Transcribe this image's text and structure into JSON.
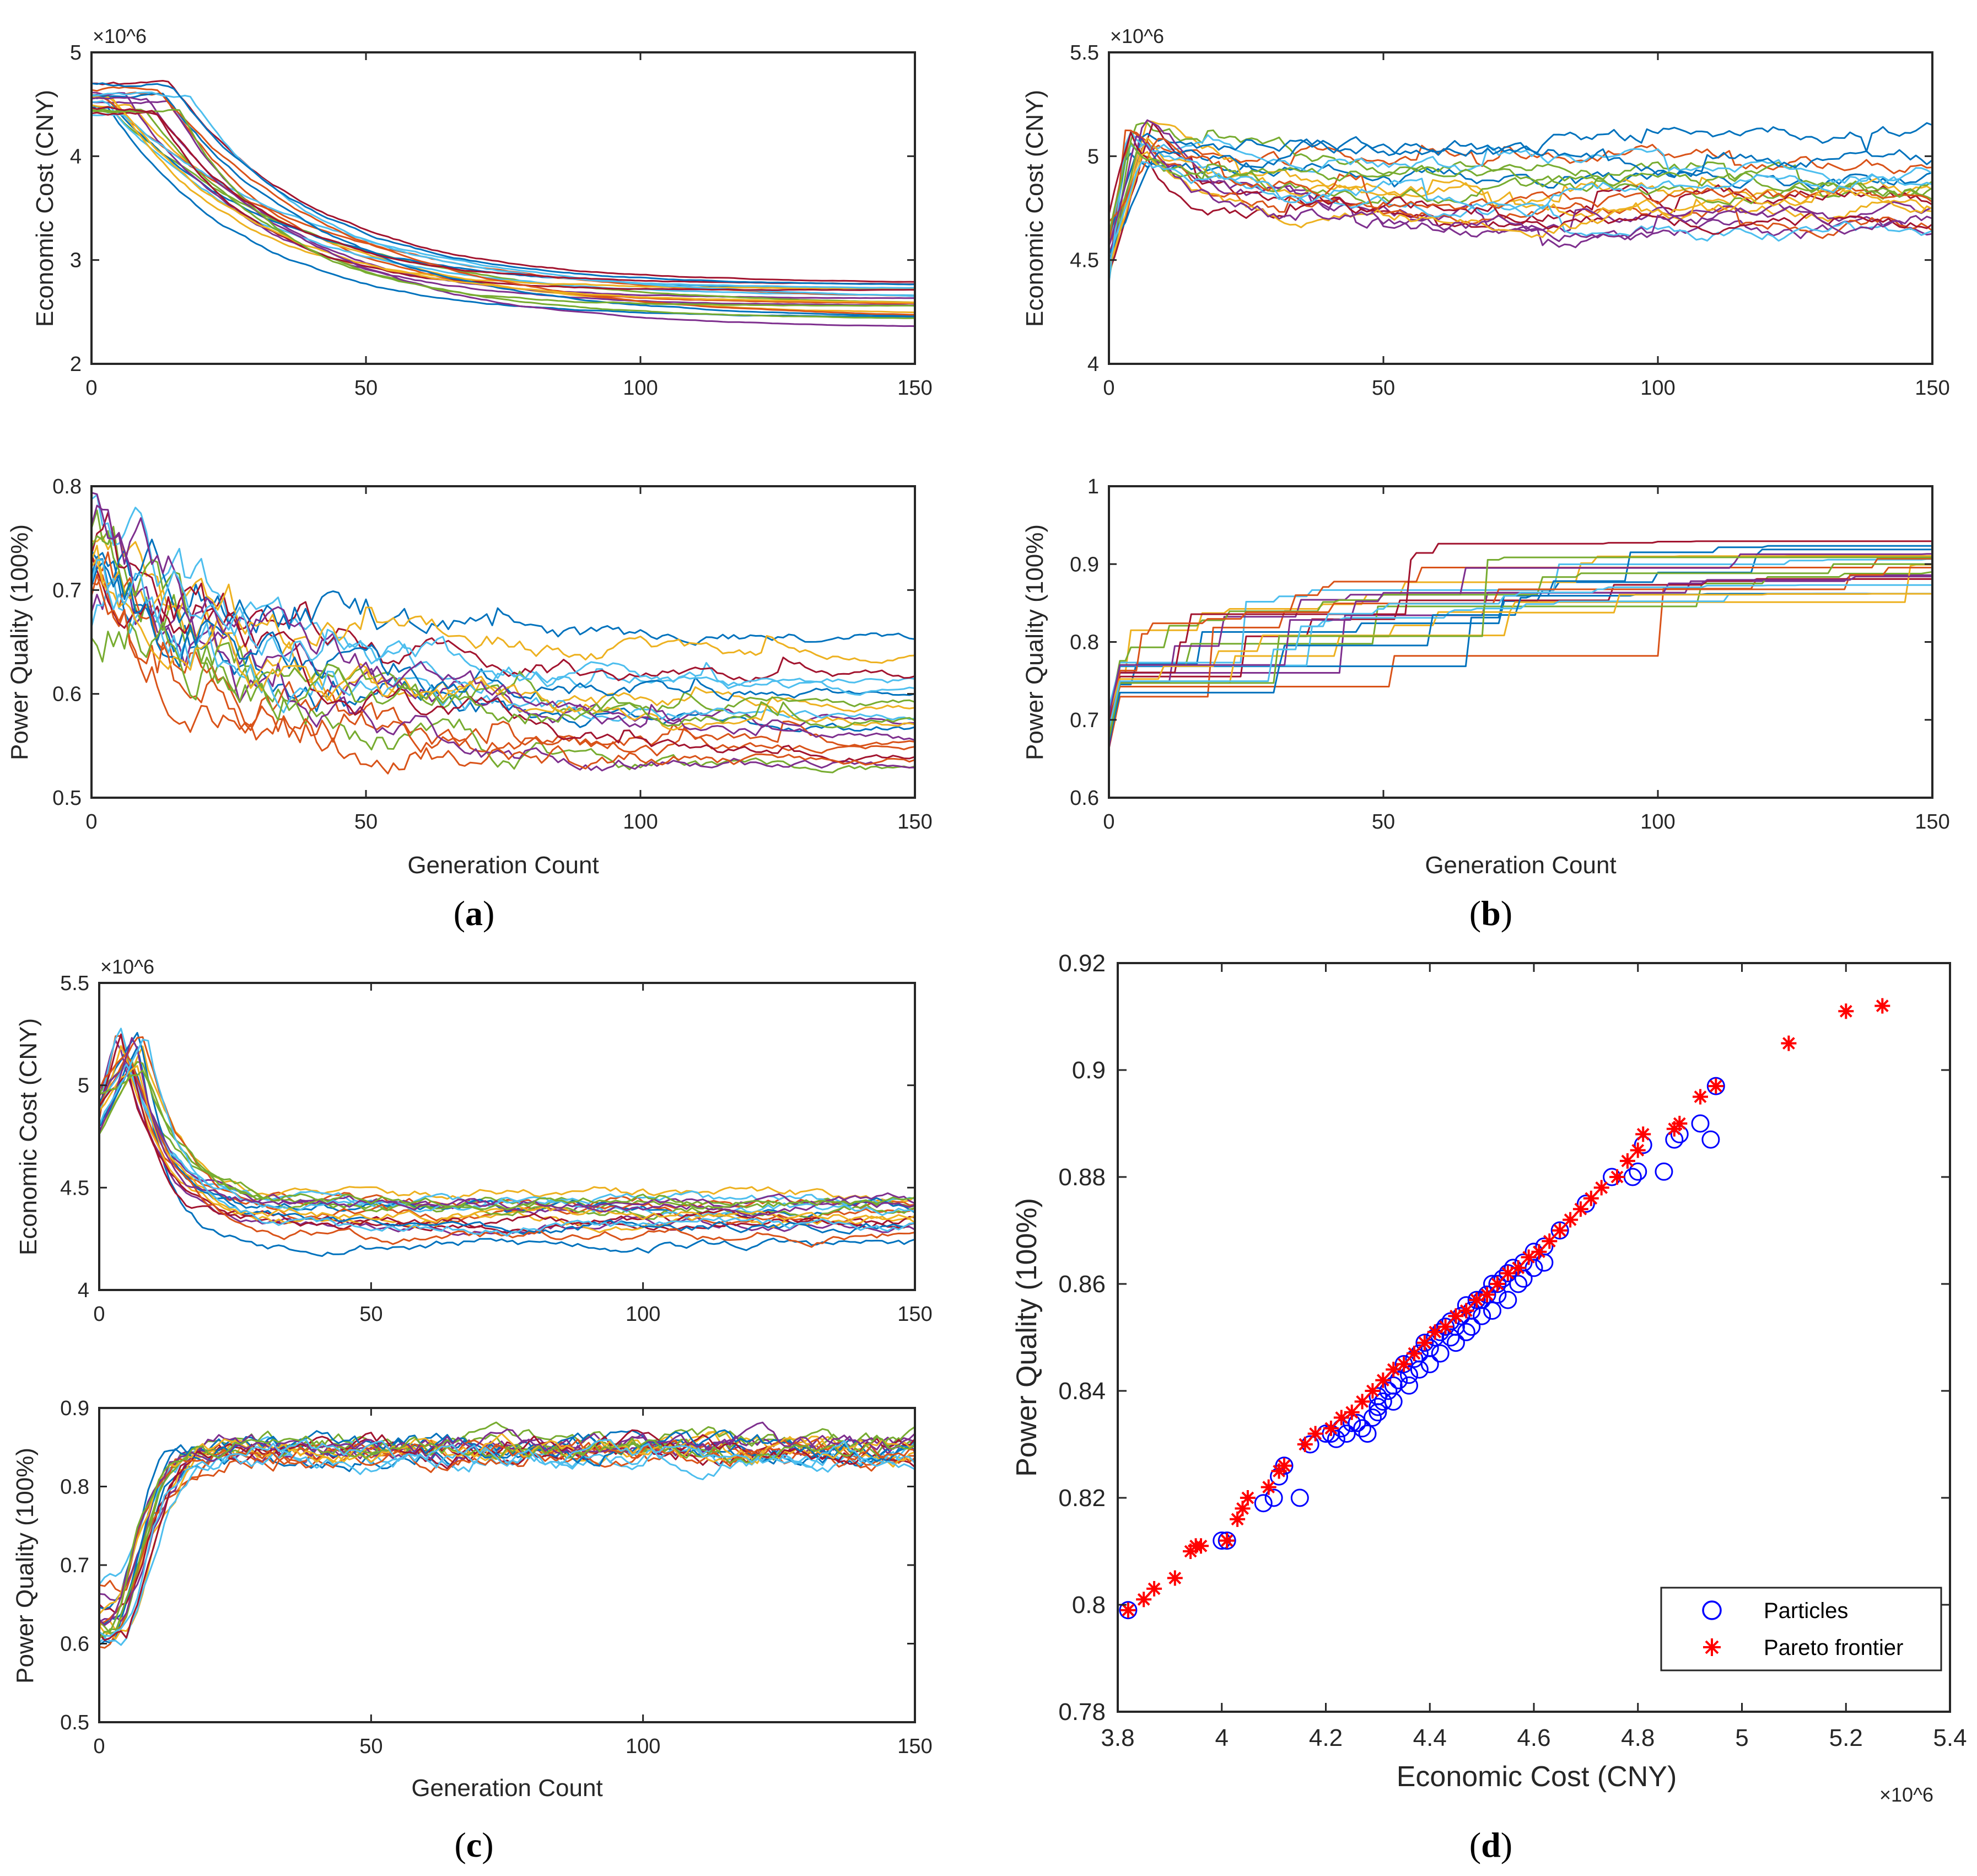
{
  "subfigures": [
    "a",
    "b",
    "c",
    "d"
  ],
  "chart_data": [
    {
      "id": "a-cost",
      "panel": "a",
      "type": "line",
      "title": "",
      "xlabel": "",
      "ylabel": "Economic Cost (CNY)",
      "exponent_label": "×10^6",
      "xlim": [
        0,
        150
      ],
      "ylim": [
        2,
        5
      ],
      "xticks": [
        "0",
        "50",
        "100",
        "150"
      ],
      "yticks": [
        "2",
        "3",
        "4",
        "5"
      ],
      "trend": {
        "mode": "decay",
        "start": [
          4.38,
          4.72
        ],
        "end": [
          2.32,
          2.78
        ],
        "tau": [
          18,
          40
        ],
        "delay": [
          2,
          18
        ],
        "noise": 0.01,
        "jumps": 0
      },
      "series_count": 22,
      "seed": 11
    },
    {
      "id": "a-pq",
      "panel": "a",
      "type": "line",
      "title": "",
      "xlabel": "Generation Count",
      "ylabel": "Power Quality (100%)",
      "xlim": [
        0,
        150
      ],
      "ylim": [
        0.5,
        0.8
      ],
      "xticks": [
        "0",
        "50",
        "100",
        "150"
      ],
      "yticks": [
        "0.5",
        "0.6",
        "0.7",
        "0.8"
      ],
      "trend": {
        "mode": "decay",
        "start": [
          0.67,
          0.78
        ],
        "end": [
          0.505,
          0.665
        ],
        "tau": [
          20,
          55
        ],
        "delay": [
          0,
          5
        ],
        "noise": 0.018,
        "jumps": 6
      },
      "series_count": 20,
      "seed": 23
    },
    {
      "id": "b-cost",
      "panel": "b",
      "type": "line",
      "title": "",
      "xlabel": "",
      "ylabel": "Economic Cost (CNY)",
      "exponent_label": "×10^6",
      "xlim": [
        0,
        150
      ],
      "ylim": [
        4,
        5.5
      ],
      "xticks": [
        "0",
        "50",
        "100",
        "150"
      ],
      "yticks": [
        "4",
        "4.5",
        "5",
        "5.5"
      ],
      "trend": {
        "mode": "peak",
        "start": [
          4.35,
          4.75
        ],
        "peak": [
          5.0,
          5.25
        ],
        "end": [
          4.65,
          5.05
        ],
        "tau": [
          8,
          20
        ],
        "noise": 0.025,
        "jumps": 5
      },
      "series_count": 20,
      "seed": 37
    },
    {
      "id": "b-pq",
      "panel": "b",
      "type": "line",
      "title": "",
      "xlabel": "Generation Count",
      "ylabel": "Power Quality (100%)",
      "xlim": [
        0,
        150
      ],
      "ylim": [
        0.6,
        1
      ],
      "xticks": [
        "0",
        "50",
        "100",
        "150"
      ],
      "yticks": [
        "0.6",
        "0.7",
        "0.8",
        "0.9",
        "1"
      ],
      "trend": {
        "mode": "step",
        "start": [
          0.66,
          0.72
        ],
        "end": [
          0.86,
          0.93
        ],
        "tau": [
          20,
          60
        ],
        "noise": 0.0,
        "jumps": 0
      },
      "series_count": 20,
      "seed": 41
    },
    {
      "id": "c-cost",
      "panel": "c",
      "type": "line",
      "title": "",
      "xlabel": "",
      "ylabel": "Economic Cost (CNY)",
      "exponent_label": "×10^6",
      "xlim": [
        0,
        150
      ],
      "ylim": [
        4,
        5.5
      ],
      "xticks": [
        "0",
        "50",
        "100",
        "150"
      ],
      "yticks": [
        "4",
        "4.5",
        "5",
        "5.5"
      ],
      "trend": {
        "mode": "peak",
        "start": [
          4.75,
          5.0
        ],
        "peak": [
          5.05,
          5.32
        ],
        "end": [
          4.2,
          4.48
        ],
        "tau": [
          5,
          9
        ],
        "noise": 0.018,
        "jumps": 0
      },
      "series_count": 20,
      "seed": 53
    },
    {
      "id": "c-pq",
      "panel": "c",
      "type": "line",
      "title": "",
      "xlabel": "Generation Count",
      "ylabel": "Power Quality (100%)",
      "xlim": [
        0,
        150
      ],
      "ylim": [
        0.5,
        0.9
      ],
      "xticks": [
        "0",
        "50",
        "100",
        "150"
      ],
      "yticks": [
        "0.5",
        "0.6",
        "0.7",
        "0.8",
        "0.9"
      ],
      "trend": {
        "mode": "rise",
        "start": [
          0.58,
          0.68
        ],
        "end": [
          0.835,
          0.856
        ],
        "tau": [
          5,
          9
        ],
        "noise": 0.006,
        "jumps": 0
      },
      "series_count": 20,
      "seed": 67
    },
    {
      "id": "d-scatter",
      "panel": "d",
      "type": "scatter",
      "title": "",
      "xlabel": "Economic Cost (CNY)",
      "ylabel": "Power Quality (100%)",
      "exponent_label": "×10^6",
      "xlim": [
        3.8,
        5.4
      ],
      "ylim": [
        0.78,
        0.92
      ],
      "xticks": [
        "3.8",
        "4",
        "4.2",
        "4.4",
        "4.6",
        "4.8",
        "5",
        "5.2",
        "5.4"
      ],
      "yticks": [
        "0.78",
        "0.8",
        "0.82",
        "0.84",
        "0.86",
        "0.88",
        "0.9",
        "0.92"
      ],
      "legend": {
        "location": "bottom-right",
        "entries": [
          "Particles",
          "Pareto frontier"
        ]
      },
      "series": [
        {
          "name": "Particles",
          "marker": "circle",
          "color": "#0000ff",
          "points": [
            [
              3.82,
              0.799
            ],
            [
              4.0,
              0.812
            ],
            [
              4.01,
              0.812
            ],
            [
              4.08,
              0.819
            ],
            [
              4.1,
              0.82
            ],
            [
              4.11,
              0.824
            ],
            [
              4.12,
              0.826
            ],
            [
              4.15,
              0.82
            ],
            [
              4.17,
              0.83
            ],
            [
              4.2,
              0.832
            ],
            [
              4.22,
              0.831
            ],
            [
              4.23,
              0.833
            ],
            [
              4.24,
              0.832
            ],
            [
              4.25,
              0.834
            ],
            [
              4.27,
              0.833
            ],
            [
              4.29,
              0.835
            ],
            [
              4.3,
              0.836
            ],
            [
              4.31,
              0.838
            ],
            [
              4.32,
              0.84
            ],
            [
              4.33,
              0.841
            ],
            [
              4.34,
              0.842
            ],
            [
              4.35,
              0.845
            ],
            [
              4.36,
              0.843
            ],
            [
              4.37,
              0.846
            ],
            [
              4.38,
              0.847
            ],
            [
              4.39,
              0.849
            ],
            [
              4.4,
              0.848
            ],
            [
              4.41,
              0.85
            ],
            [
              4.42,
              0.851
            ],
            [
              4.43,
              0.852
            ],
            [
              4.44,
              0.853
            ],
            [
              4.45,
              0.852
            ],
            [
              4.46,
              0.854
            ],
            [
              4.47,
              0.856
            ],
            [
              4.48,
              0.855
            ],
            [
              4.49,
              0.857
            ],
            [
              4.5,
              0.857
            ],
            [
              4.51,
              0.858
            ],
            [
              4.52,
              0.86
            ],
            [
              4.53,
              0.86
            ],
            [
              4.54,
              0.861
            ],
            [
              4.55,
              0.862
            ],
            [
              4.56,
              0.863
            ],
            [
              4.58,
              0.864
            ],
            [
              4.6,
              0.866
            ],
            [
              4.62,
              0.867
            ],
            [
              4.65,
              0.87
            ],
            [
              4.7,
              0.875
            ],
            [
              4.75,
              0.88
            ],
            [
              4.79,
              0.88
            ],
            [
              4.8,
              0.881
            ],
            [
              4.81,
              0.886
            ],
            [
              4.85,
              0.881
            ],
            [
              4.87,
              0.887
            ],
            [
              4.88,
              0.888
            ],
            [
              4.92,
              0.89
            ],
            [
              4.94,
              0.887
            ],
            [
              4.95,
              0.897
            ],
            [
              4.28,
              0.832
            ],
            [
              4.3,
              0.837
            ],
            [
              4.36,
              0.841
            ],
            [
              4.45,
              0.849
            ],
            [
              4.5,
              0.854
            ],
            [
              4.55,
              0.857
            ],
            [
              4.6,
              0.863
            ],
            [
              4.4,
              0.845
            ],
            [
              4.33,
              0.838
            ],
            [
              4.42,
              0.847
            ],
            [
              4.48,
              0.852
            ],
            [
              4.52,
              0.855
            ],
            [
              4.57,
              0.86
            ],
            [
              4.62,
              0.864
            ],
            [
              4.47,
              0.851
            ],
            [
              4.38,
              0.844
            ],
            [
              4.26,
              0.834
            ],
            [
              4.21,
              0.832
            ],
            [
              4.3,
              0.839
            ],
            [
              4.44,
              0.85
            ],
            [
              4.53,
              0.858
            ],
            [
              4.58,
              0.861
            ]
          ]
        },
        {
          "name": "Pareto frontier",
          "marker": "star",
          "color": "#ff0000",
          "points": [
            [
              3.82,
              0.799
            ],
            [
              3.85,
              0.801
            ],
            [
              3.87,
              0.803
            ],
            [
              3.91,
              0.805
            ],
            [
              3.94,
              0.81
            ],
            [
              3.95,
              0.811
            ],
            [
              3.96,
              0.811
            ],
            [
              4.01,
              0.812
            ],
            [
              4.03,
              0.816
            ],
            [
              4.04,
              0.818
            ],
            [
              4.05,
              0.82
            ],
            [
              4.09,
              0.822
            ],
            [
              4.11,
              0.825
            ],
            [
              4.12,
              0.826
            ],
            [
              4.16,
              0.83
            ],
            [
              4.18,
              0.832
            ],
            [
              4.21,
              0.833
            ],
            [
              4.23,
              0.835
            ],
            [
              4.25,
              0.836
            ],
            [
              4.27,
              0.838
            ],
            [
              4.29,
              0.84
            ],
            [
              4.31,
              0.842
            ],
            [
              4.33,
              0.844
            ],
            [
              4.35,
              0.845
            ],
            [
              4.37,
              0.847
            ],
            [
              4.39,
              0.849
            ],
            [
              4.41,
              0.851
            ],
            [
              4.43,
              0.852
            ],
            [
              4.45,
              0.854
            ],
            [
              4.47,
              0.855
            ],
            [
              4.49,
              0.857
            ],
            [
              4.51,
              0.858
            ],
            [
              4.53,
              0.86
            ],
            [
              4.55,
              0.862
            ],
            [
              4.57,
              0.863
            ],
            [
              4.59,
              0.865
            ],
            [
              4.61,
              0.866
            ],
            [
              4.63,
              0.868
            ],
            [
              4.65,
              0.87
            ],
            [
              4.67,
              0.872
            ],
            [
              4.69,
              0.874
            ],
            [
              4.71,
              0.876
            ],
            [
              4.73,
              0.878
            ],
            [
              4.76,
              0.88
            ],
            [
              4.78,
              0.883
            ],
            [
              4.8,
              0.885
            ],
            [
              4.81,
              0.888
            ],
            [
              4.87,
              0.889
            ],
            [
              4.88,
              0.89
            ],
            [
              4.92,
              0.895
            ],
            [
              4.95,
              0.897
            ],
            [
              5.09,
              0.905
            ],
            [
              5.2,
              0.911
            ],
            [
              5.27,
              0.912
            ]
          ]
        }
      ]
    }
  ]
}
